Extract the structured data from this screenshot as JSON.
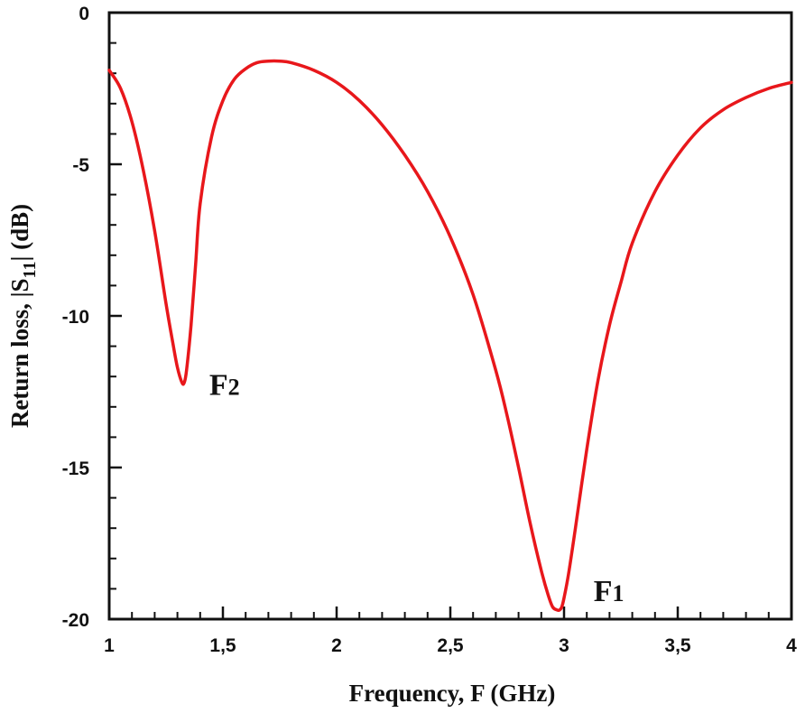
{
  "chart_data": {
    "type": "line",
    "title": "",
    "xlabel": "Frequency, F  (GHz)",
    "ylabel_parts": {
      "prefix": "Return loss, |S",
      "subscript": "11",
      "suffix": "| (dB)"
    },
    "xlim": [
      1,
      4
    ],
    "ylim": [
      -20,
      0
    ],
    "x_ticks": [
      {
        "value": 1,
        "label": "1"
      },
      {
        "value": 1.5,
        "label": "1,5"
      },
      {
        "value": 2,
        "label": "2"
      },
      {
        "value": 2.5,
        "label": "2,5"
      },
      {
        "value": 3,
        "label": "3"
      },
      {
        "value": 3.5,
        "label": "3,5"
      },
      {
        "value": 4,
        "label": "4"
      }
    ],
    "y_ticks": [
      {
        "value": 0,
        "label": "0"
      },
      {
        "value": -5,
        "label": "-5"
      },
      {
        "value": -10,
        "label": "-10"
      },
      {
        "value": -15,
        "label": "-15"
      },
      {
        "value": -20,
        "label": "-20"
      }
    ],
    "x_minor_step": 0.1,
    "y_minor_step": 1,
    "series": [
      {
        "color": "#e8171b",
        "x": [
          1.0,
          1.05,
          1.1,
          1.15,
          1.2,
          1.25,
          1.28,
          1.3,
          1.32,
          1.33,
          1.34,
          1.36,
          1.38,
          1.4,
          1.45,
          1.5,
          1.55,
          1.6,
          1.65,
          1.7,
          1.75,
          1.8,
          1.9,
          2.0,
          2.1,
          2.2,
          2.3,
          2.4,
          2.5,
          2.6,
          2.7,
          2.75,
          2.8,
          2.85,
          2.9,
          2.93,
          2.95,
          2.97,
          2.98,
          2.99,
          3.0,
          3.02,
          3.05,
          3.1,
          3.15,
          3.2,
          3.25,
          3.3,
          3.4,
          3.5,
          3.6,
          3.7,
          3.8,
          3.9,
          4.0
        ],
        "values": [
          -1.9,
          -2.5,
          -3.6,
          -5.2,
          -7.2,
          -9.6,
          -10.9,
          -11.7,
          -12.2,
          -12.2,
          -11.8,
          -10.3,
          -8.3,
          -6.3,
          -4.1,
          -2.9,
          -2.2,
          -1.85,
          -1.65,
          -1.6,
          -1.6,
          -1.65,
          -1.9,
          -2.3,
          -2.9,
          -3.7,
          -4.7,
          -5.9,
          -7.4,
          -9.3,
          -11.8,
          -13.3,
          -15.0,
          -16.8,
          -18.4,
          -19.2,
          -19.6,
          -19.7,
          -19.7,
          -19.6,
          -19.3,
          -18.5,
          -17.0,
          -14.4,
          -12.1,
          -10.3,
          -8.9,
          -7.6,
          -5.9,
          -4.7,
          -3.8,
          -3.2,
          -2.8,
          -2.5,
          -2.3
        ]
      }
    ],
    "annotations": [
      {
        "text": "F",
        "sub": "2",
        "x": 1.44,
        "y": -12.6
      },
      {
        "text": "F",
        "sub": "1",
        "x": 3.13,
        "y": -19.4
      }
    ]
  }
}
